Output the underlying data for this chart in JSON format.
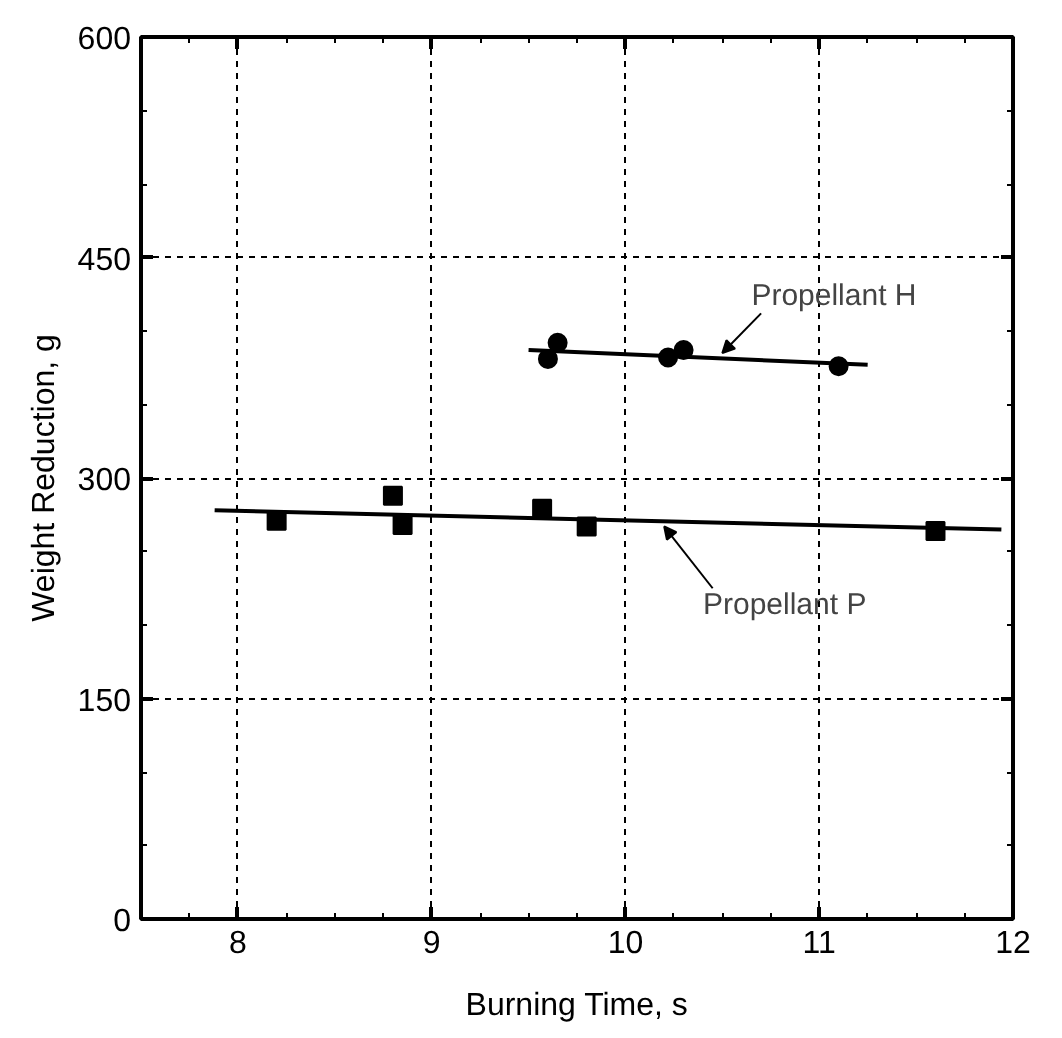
{
  "chart_data": {
    "type": "scatter",
    "xlabel": "Burning Time, s",
    "ylabel": "Weight Reduction, g",
    "xlim": [
      7.5,
      12
    ],
    "xticks": [
      8,
      9,
      10,
      11,
      12
    ],
    "ylim": [
      0,
      600
    ],
    "yticks": [
      0,
      150,
      300,
      450,
      600
    ],
    "grid": true,
    "series": [
      {
        "marker": "square",
        "color": "#000000",
        "x": [
          8.2,
          8.8,
          8.85,
          9.57,
          9.8,
          11.6
        ],
        "values": [
          271,
          288,
          268,
          279,
          267,
          264
        ]
      },
      {
        "marker": "circle",
        "color": "#000000",
        "x": [
          9.6,
          9.65,
          10.22,
          10.3,
          11.1
        ],
        "values": [
          381,
          392,
          382,
          387,
          376
        ]
      },
      {
        "type": "line",
        "marker": "none",
        "color": "#000000",
        "x": [
          7.88,
          11.94
        ],
        "values": [
          278,
          265
        ]
      },
      {
        "type": "line",
        "marker": "none",
        "color": "#000000",
        "x": [
          9.5,
          11.25
        ],
        "values": [
          387,
          377
        ]
      }
    ],
    "annotations": [
      {
        "text": "Propellant H",
        "x": 10.5,
        "y": 382
      },
      {
        "text": "Propellant P",
        "x": 10.2,
        "y": 270
      }
    ]
  }
}
